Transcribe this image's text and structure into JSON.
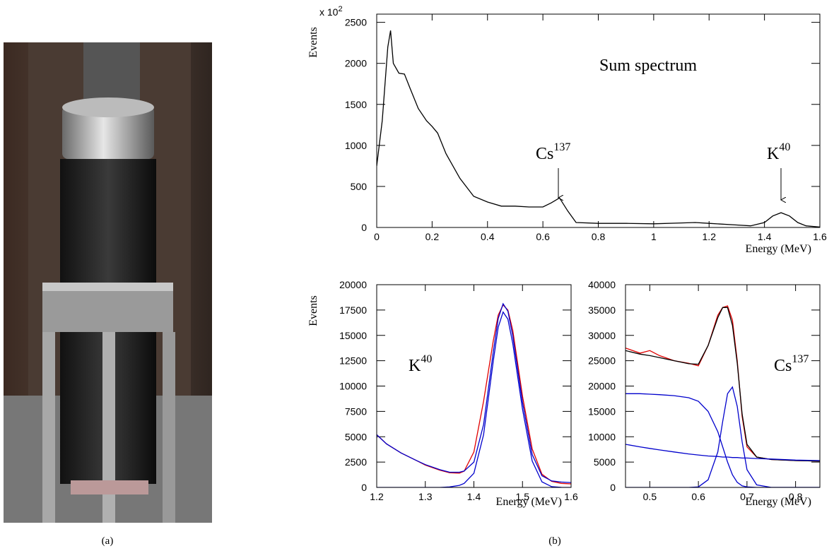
{
  "captions": [
    "(a)",
    "(b)"
  ],
  "chart_data": [
    {
      "type": "line",
      "y_label": "Events",
      "x_label": "Energy (MeV)",
      "yscale_label": "x 10",
      "yscale_exponent": "2",
      "annotations": [
        {
          "text": "Sum spectrum"
        },
        {
          "text": "Cs",
          "superscript": "137"
        },
        {
          "text": "K",
          "superscript": "40"
        }
      ],
      "xlim": [
        0,
        1.6
      ],
      "ylim": [
        0,
        2600
      ],
      "xticks": [
        0,
        0.2,
        0.4,
        0.6,
        0.8,
        1,
        1.2,
        1.4,
        1.6
      ],
      "yticks": [
        0,
        500,
        1000,
        1500,
        2000,
        2500
      ],
      "x": [
        0,
        0.02,
        0.04,
        0.05,
        0.06,
        0.08,
        0.1,
        0.12,
        0.15,
        0.18,
        0.2,
        0.22,
        0.25,
        0.3,
        0.35,
        0.4,
        0.45,
        0.5,
        0.55,
        0.6,
        0.63,
        0.66,
        0.69,
        0.72,
        0.8,
        0.9,
        1.0,
        1.1,
        1.15,
        1.2,
        1.3,
        1.35,
        1.4,
        1.43,
        1.46,
        1.49,
        1.52,
        1.55,
        1.6
      ],
      "series": [
        {
          "color": "#000000",
          "values": [
            750,
            1300,
            2200,
            2400,
            2000,
            1880,
            1870,
            1700,
            1450,
            1300,
            1230,
            1150,
            900,
            600,
            380,
            310,
            260,
            260,
            250,
            250,
            300,
            360,
            200,
            60,
            50,
            50,
            45,
            55,
            60,
            50,
            30,
            20,
            60,
            140,
            180,
            140,
            60,
            20,
            5
          ]
        }
      ]
    },
    {
      "type": "line",
      "y_label": "Events",
      "x_label": "Energy (MeV)",
      "annotations": [
        {
          "text": "K",
          "superscript": "40"
        }
      ],
      "xlim": [
        1.2,
        1.6
      ],
      "ylim": [
        0,
        20000
      ],
      "xticks": [
        1.2,
        1.3,
        1.4,
        1.5,
        1.6
      ],
      "yticks": [
        0,
        2500,
        5000,
        7500,
        10000,
        12500,
        15000,
        17500,
        20000
      ],
      "x": [
        1.2,
        1.22,
        1.25,
        1.28,
        1.3,
        1.33,
        1.35,
        1.37,
        1.38,
        1.4,
        1.42,
        1.44,
        1.45,
        1.46,
        1.47,
        1.48,
        1.5,
        1.52,
        1.54,
        1.56,
        1.58,
        1.6
      ],
      "series": [
        {
          "color": "#e00000",
          "values": [
            5200,
            4300,
            3400,
            2700,
            2200,
            1700,
            1450,
            1400,
            1600,
            3500,
            8500,
            14500,
            17000,
            18000,
            17500,
            15500,
            9000,
            3800,
            1300,
            600,
            400,
            350
          ]
        },
        {
          "color": "#0000cc",
          "values": [
            5200,
            4300,
            3400,
            2700,
            2250,
            1750,
            1500,
            1500,
            1620,
            2500,
            6200,
            13400,
            16660,
            18120,
            17390,
            14960,
            8400,
            3250,
            1150,
            640,
            530,
            480
          ]
        },
        {
          "color": "#0000cc",
          "values": [
            0,
            0,
            0,
            0,
            0,
            0,
            50,
            200,
            400,
            1400,
            5200,
            12500,
            15800,
            17300,
            16600,
            14200,
            7700,
            2600,
            550,
            80,
            10,
            0
          ]
        }
      ]
    },
    {
      "type": "line",
      "x_label": "Energy (MeV)",
      "annotations": [
        {
          "text": "Cs",
          "superscript": "137"
        }
      ],
      "xlim": [
        0.45,
        0.85
      ],
      "ylim": [
        0,
        40000
      ],
      "xticks": [
        0.5,
        0.6,
        0.7,
        0.8
      ],
      "yticks": [
        0,
        5000,
        10000,
        15000,
        20000,
        25000,
        30000,
        35000,
        40000
      ],
      "x": [
        0.45,
        0.48,
        0.5,
        0.52,
        0.55,
        0.58,
        0.6,
        0.62,
        0.64,
        0.65,
        0.66,
        0.67,
        0.68,
        0.69,
        0.7,
        0.72,
        0.75,
        0.8,
        0.85
      ],
      "series": [
        {
          "color": "#e00000",
          "values": [
            27500,
            26500,
            27000,
            26000,
            25000,
            24500,
            24000,
            28000,
            34000,
            35500,
            35800,
            33000,
            25000,
            14000,
            8000,
            6000,
            5500,
            5300,
            5200
          ]
        },
        {
          "color": "#000000",
          "values": [
            27000,
            26300,
            26000,
            25600,
            25000,
            24400,
            24300,
            28000,
            33500,
            35500,
            35500,
            32000,
            24500,
            14500,
            8500,
            6000,
            5500,
            5300,
            5200
          ]
        },
        {
          "color": "#0000cc",
          "values": [
            18500,
            18500,
            18400,
            18300,
            18100,
            17700,
            17000,
            15000,
            11000,
            8000,
            5000,
            2500,
            1000,
            300,
            100,
            0,
            0,
            0,
            0
          ]
        },
        {
          "color": "#0000cc",
          "values": [
            0,
            0,
            0,
            0,
            0,
            0,
            100,
            1500,
            7000,
            13000,
            18500,
            19800,
            16000,
            9000,
            3500,
            500,
            0,
            0,
            0
          ]
        },
        {
          "color": "#0000cc",
          "values": [
            8500,
            8000,
            7700,
            7400,
            7000,
            6600,
            6400,
            6200,
            6100,
            6000,
            6000,
            5900,
            5900,
            5800,
            5800,
            5700,
            5600,
            5400,
            5300
          ]
        }
      ]
    }
  ]
}
